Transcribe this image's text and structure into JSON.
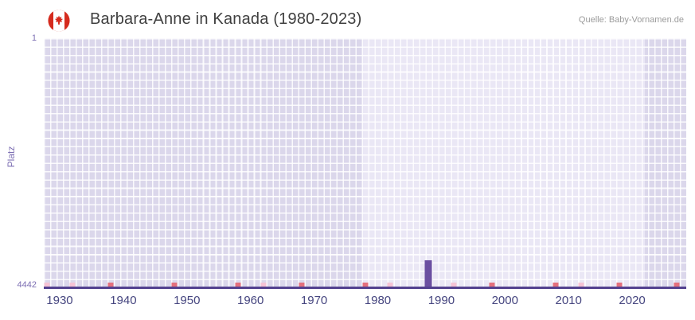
{
  "header": {
    "title": "Barbara-Anne in Kanada (1980-2023)",
    "source": "Quelle: Baby-Vornamen.de",
    "flag_icon": "canada-flag"
  },
  "chart_data": {
    "type": "bar",
    "title": "Barbara-Anne in Kanada (1980-2023)",
    "xlabel": "",
    "ylabel": "Platz",
    "y_axis": {
      "top_label": "1",
      "bottom_label": "4442",
      "min": 1,
      "max": 4442,
      "inverted": true
    },
    "x_axis": {
      "min": 1927.5,
      "max": 2028.5,
      "ticks": [
        1930,
        1940,
        1950,
        1960,
        1970,
        1980,
        1990,
        2000,
        2010,
        2020
      ]
    },
    "bars": [
      {
        "year": 1988,
        "rank": 3961
      }
    ],
    "baseline_markers": {
      "red_years": [
        1938,
        1948,
        1958,
        1968,
        1978,
        1998,
        2008,
        2018,
        2027
      ],
      "pink_years": [
        1928,
        1932,
        1962,
        1982,
        1992,
        2012
      ]
    },
    "bands": [
      {
        "from": 1927.5,
        "to": 1977.5,
        "shade": "dark"
      },
      {
        "from": 1977.5,
        "to": 2022.0,
        "shade": "light"
      },
      {
        "from": 2022.0,
        "to": 2028.5,
        "shade": "dark"
      }
    ],
    "colors": {
      "bar": "#6b4fa1",
      "axis_line": "#53418f",
      "band_dark": "#dbd7eb",
      "band_light": "#eae7f5",
      "marker_red": "#e4707d",
      "marker_pink": "#f6c3d5",
      "tick_label": "#45457f",
      "y_label": "#7d6fb3"
    },
    "grid": true,
    "legend": false
  }
}
